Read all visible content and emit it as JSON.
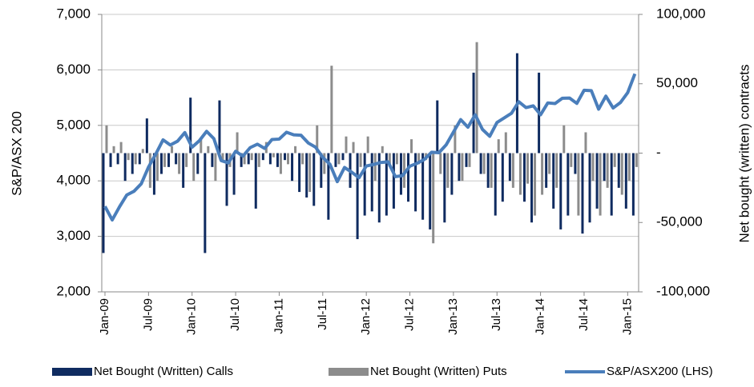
{
  "chart_data": {
    "type": "bar-line",
    "y_label": "S&P/ASX 200",
    "y2_label": "Net bought (written) contracts",
    "categories": [
      "Jan-09",
      null,
      null,
      null,
      null,
      null,
      "Jul-09",
      null,
      null,
      null,
      null,
      null,
      "Jan-10",
      null,
      null,
      null,
      null,
      null,
      "Jul-10",
      null,
      null,
      null,
      null,
      null,
      "Jan-11",
      null,
      null,
      null,
      null,
      null,
      "Jul-11",
      null,
      null,
      null,
      null,
      null,
      "Jan-12",
      null,
      null,
      null,
      null,
      null,
      "Jul-12",
      null,
      null,
      null,
      null,
      null,
      "Jan-13",
      null,
      null,
      null,
      null,
      null,
      "Jul-13",
      null,
      null,
      null,
      null,
      null,
      "Jan-14",
      null,
      null,
      null,
      null,
      null,
      "Jul-14",
      null,
      null,
      null,
      null,
      null,
      "Jan-15",
      null
    ],
    "ylim": [
      2000,
      7000
    ],
    "yticks": [
      {
        "value": 2000,
        "label": "2,000"
      },
      {
        "value": 3000,
        "label": "3,000"
      },
      {
        "value": 4000,
        "label": "4,000"
      },
      {
        "value": 5000,
        "label": "5,000"
      },
      {
        "value": 6000,
        "label": "6,000"
      },
      {
        "value": 7000,
        "label": "7,000"
      }
    ],
    "y2lim": [
      -100000,
      100000
    ],
    "y2ticks": [
      {
        "value": -100000,
        "label": "-100,000"
      },
      {
        "value": -50000,
        "label": "-50,000"
      },
      {
        "value": 0,
        "label": "-"
      },
      {
        "value": 50000,
        "label": "50,000"
      },
      {
        "value": 100000,
        "label": "100,000"
      }
    ],
    "grid": true,
    "series": [
      {
        "name": "Net Bought (Written) Calls",
        "color": "#0f2b60",
        "kind": "bar",
        "axis": "y2",
        "values": [
          -72000,
          -10000,
          -8000,
          -20000,
          -15000,
          -8000,
          25000,
          -30000,
          -15000,
          -10000,
          -8000,
          -25000,
          40000,
          -15000,
          -72000,
          -10000,
          38000,
          -38000,
          -30000,
          -10000,
          -8000,
          -40000,
          -5000,
          -8000,
          -10000,
          -5000,
          -20000,
          -28000,
          -32000,
          -38000,
          -25000,
          -48000,
          -10000,
          -5000,
          -25000,
          -62000,
          -45000,
          -42000,
          -50000,
          -45000,
          -40000,
          -30000,
          -35000,
          -42000,
          -48000,
          -55000,
          38000,
          -50000,
          -30000,
          -20000,
          -10000,
          58000,
          -15000,
          -25000,
          -45000,
          -35000,
          -20000,
          72000,
          -35000,
          -50000,
          58000,
          -25000,
          -40000,
          -55000,
          -45000,
          -15000,
          -58000,
          -50000,
          -40000,
          -20000,
          -45000,
          -25000,
          -40000,
          -45000
        ]
      },
      {
        "name": "Net Bought (Written) Puts",
        "color": "#8c8c8c",
        "kind": "bar",
        "axis": "y2",
        "values": [
          20000,
          5000,
          8000,
          -5000,
          -8000,
          3000,
          -25000,
          -20000,
          -10000,
          5000,
          -15000,
          -10000,
          -20000,
          10000,
          5000,
          -20000,
          -5000,
          -10000,
          15000,
          -8000,
          -5000,
          -10000,
          8000,
          -3000,
          -15000,
          -8000,
          5000,
          -8000,
          -28000,
          20000,
          -15000,
          63000,
          -8000,
          12000,
          8000,
          -10000,
          12000,
          -20000,
          5000,
          -10000,
          -8000,
          -25000,
          10000,
          -8000,
          -5000,
          -65000,
          -15000,
          -25000,
          20000,
          -20000,
          -10000,
          80000,
          -15000,
          -25000,
          10000,
          15000,
          -25000,
          -30000,
          -22000,
          -45000,
          -30000,
          -15000,
          -25000,
          20000,
          -10000,
          -45000,
          15000,
          -20000,
          -45000,
          -25000,
          -10000,
          -30000,
          -20000,
          -10000
        ]
      },
      {
        "name": "S&P/ASX200 (LHS)",
        "color": "#4a7ebb",
        "kind": "line",
        "values": [
          3540,
          3296,
          3532,
          3745,
          3813,
          3948,
          4249,
          4484,
          4739,
          4646,
          4715,
          4870,
          4606,
          4723,
          4893,
          4761,
          4366,
          4324,
          4533,
          4446,
          4599,
          4661,
          4585,
          4745,
          4753,
          4876,
          4829,
          4823,
          4683,
          4608,
          4423,
          4297,
          3986,
          4242,
          4155,
          4057,
          4268,
          4295,
          4331,
          4343,
          4076,
          4095,
          4265,
          4316,
          4387,
          4517,
          4507,
          4649,
          4878,
          5104,
          4967,
          5191,
          4927,
          4803,
          5052,
          5135,
          5218,
          5426,
          5321,
          5352,
          5191,
          5405,
          5394,
          5489,
          5492,
          5396,
          5633,
          5625,
          5293,
          5527,
          5313,
          5411,
          5588,
          5929
        ]
      }
    ]
  }
}
